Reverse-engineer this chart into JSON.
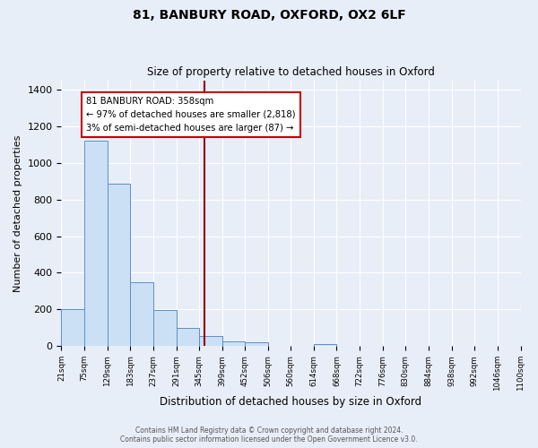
{
  "title": "81, BANBURY ROAD, OXFORD, OX2 6LF",
  "subtitle": "Size of property relative to detached houses in Oxford",
  "xlabel": "Distribution of detached houses by size in Oxford",
  "ylabel": "Number of detached properties",
  "bar_color": "#cce0f5",
  "bar_edge_color": "#5b8fc7",
  "background_color": "#e8eef8",
  "grid_color": "#ffffff",
  "bin_edges": [
    21,
    75,
    129,
    183,
    237,
    291,
    345,
    399,
    452,
    506,
    560,
    614,
    668,
    722,
    776,
    830,
    884,
    938,
    992,
    1046,
    1100
  ],
  "bin_labels": [
    "21sqm",
    "75sqm",
    "129sqm",
    "183sqm",
    "237sqm",
    "291sqm",
    "345sqm",
    "399sqm",
    "452sqm",
    "506sqm",
    "560sqm",
    "614sqm",
    "668sqm",
    "722sqm",
    "776sqm",
    "830sqm",
    "884sqm",
    "938sqm",
    "992sqm",
    "1046sqm",
    "1100sqm"
  ],
  "bar_heights": [
    200,
    1120,
    885,
    350,
    195,
    100,
    55,
    25,
    20,
    0,
    0,
    10,
    0,
    0,
    0,
    0,
    0,
    0,
    0,
    0
  ],
  "property_value": 358,
  "vline_color": "#8b0000",
  "annotation_text": "81 BANBURY ROAD: 358sqm\n← 97% of detached houses are smaller (2,818)\n3% of semi-detached houses are larger (87) →",
  "annotation_box_edge": "#cc0000",
  "annotation_box_face": "#ffffff",
  "ylim": [
    0,
    1450
  ],
  "yticks": [
    0,
    200,
    400,
    600,
    800,
    1000,
    1200,
    1400
  ],
  "footer_line1": "Contains HM Land Registry data © Crown copyright and database right 2024.",
  "footer_line2": "Contains public sector information licensed under the Open Government Licence v3.0."
}
